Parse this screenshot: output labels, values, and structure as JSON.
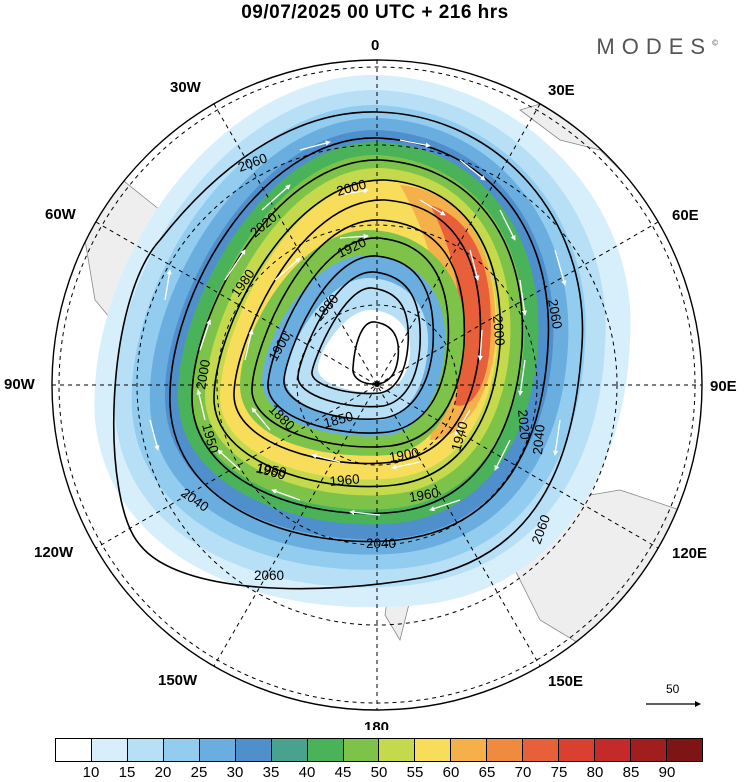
{
  "title": "09/07/2025  00 UTC  + 216 hrs",
  "brand": "MODES",
  "brand_mark": "©",
  "longitude_labels": {
    "top": "0",
    "top_right": "30E",
    "right_upper": "60E",
    "right": "90E",
    "right_lower": "120E",
    "bottom_right": "150E",
    "bottom": "180",
    "bottom_left": "150W",
    "left_lower": "120W",
    "left": "90W",
    "left_upper": "60W",
    "top_left": "30W"
  },
  "contour_labels": [
    "2060",
    "2000",
    "2020",
    "1920",
    "1980",
    "1880",
    "1900",
    "2000",
    "1850",
    "1880",
    "1950",
    "1960",
    "1940",
    "1900",
    "2020",
    "2040",
    "2060",
    "2000",
    "1950",
    "1960",
    "1960",
    "2040",
    "2040",
    "2060",
    "2060"
  ],
  "colorbar": {
    "ticks": [
      "10",
      "15",
      "20",
      "25",
      "30",
      "35",
      "40",
      "45",
      "50",
      "55",
      "60",
      "65",
      "70",
      "75",
      "80",
      "85",
      "90"
    ],
    "colors": [
      "#ffffff",
      "#d7effb",
      "#b7e0f7",
      "#92ccef",
      "#6aaee0",
      "#4f8fcb",
      "#48a28e",
      "#4ab35a",
      "#7dc34a",
      "#c4d94b",
      "#f7dd5a",
      "#f5b04a",
      "#ef8a3e",
      "#e8603a",
      "#d9402f",
      "#c42a2a",
      "#a11e1e",
      "#7e1414"
    ]
  },
  "reference_vector": "50",
  "colors": {
    "land": "#eeeeee",
    "contour": "#000000",
    "arrows": "#ffffff"
  }
}
